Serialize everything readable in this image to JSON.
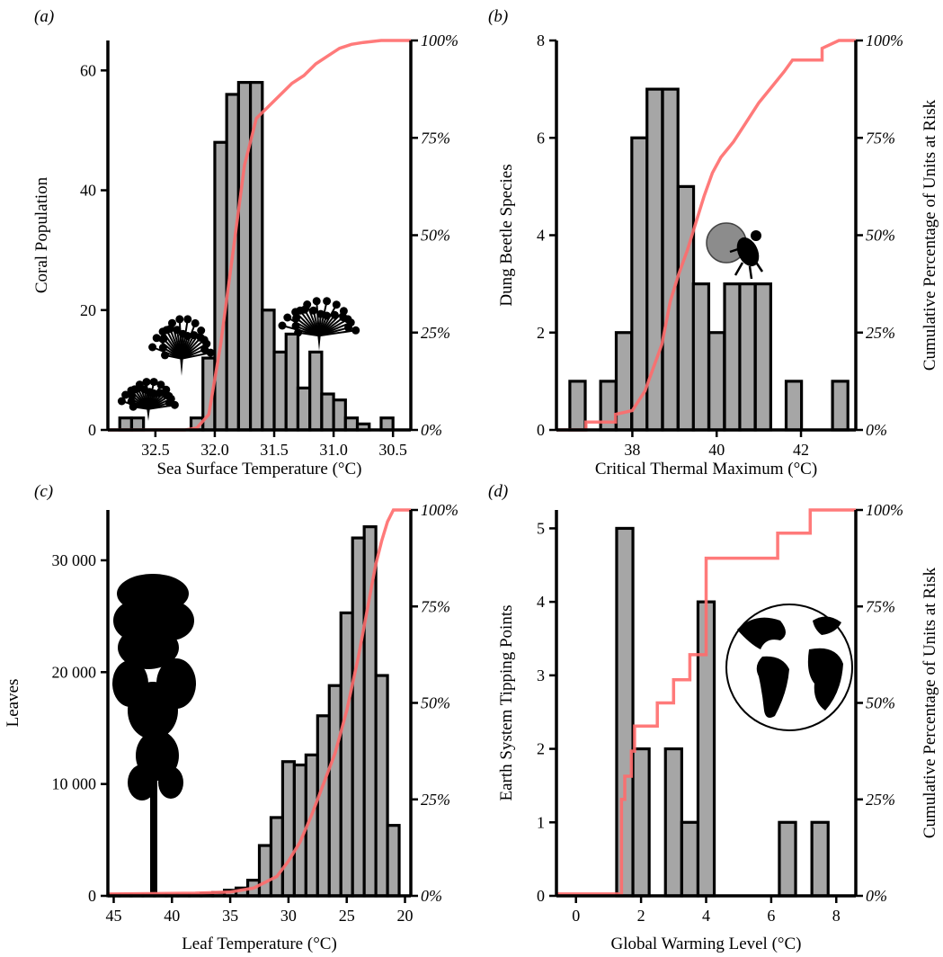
{
  "chart_data": [
    {
      "type": "bar",
      "panel_label": "(a)",
      "xlabel": "Sea Surface Temperature (°C)",
      "ylabel": "Coral Population",
      "y2label": "",
      "x_reversed": true,
      "xlim": [
        32.9,
        30.35
      ],
      "ylim": [
        0,
        65
      ],
      "x_ticks": [
        32.5,
        32.0,
        31.5,
        31.0,
        30.5
      ],
      "x_tick_labels": [
        "32.5",
        "32.0",
        "31.5",
        "31.0",
        "30.5"
      ],
      "y_ticks": [
        0,
        20,
        40,
        60
      ],
      "y_tick_labels": [
        "0",
        "20",
        "40",
        "60"
      ],
      "y2_tick_labels": [
        "0%",
        "25%",
        "50%",
        "75%",
        "100%"
      ],
      "bin_width": 0.1,
      "bins": [
        {
          "x": 32.75,
          "value": 2
        },
        {
          "x": 32.65,
          "value": 2
        },
        {
          "x": 32.15,
          "value": 2
        },
        {
          "x": 32.05,
          "value": 12
        },
        {
          "x": 31.95,
          "value": 48
        },
        {
          "x": 31.85,
          "value": 56
        },
        {
          "x": 31.75,
          "value": 58
        },
        {
          "x": 31.65,
          "value": 58
        },
        {
          "x": 31.55,
          "value": 20
        },
        {
          "x": 31.45,
          "value": 13
        },
        {
          "x": 31.35,
          "value": 16
        },
        {
          "x": 31.25,
          "value": 7
        },
        {
          "x": 31.15,
          "value": 13
        },
        {
          "x": 31.05,
          "value": 6
        },
        {
          "x": 30.95,
          "value": 5
        },
        {
          "x": 30.85,
          "value": 2
        },
        {
          "x": 30.75,
          "value": 1
        },
        {
          "x": 30.55,
          "value": 2
        }
      ],
      "cdf": [
        [
          32.9,
          0
        ],
        [
          32.25,
          0
        ],
        [
          32.15,
          0.5
        ],
        [
          32.05,
          4
        ],
        [
          31.95,
          22
        ],
        [
          31.85,
          45
        ],
        [
          31.75,
          68
        ],
        [
          31.65,
          80
        ],
        [
          31.55,
          83
        ],
        [
          31.45,
          86
        ],
        [
          31.35,
          89
        ],
        [
          31.25,
          91
        ],
        [
          31.15,
          94
        ],
        [
          31.05,
          96
        ],
        [
          30.95,
          98
        ],
        [
          30.85,
          99
        ],
        [
          30.75,
          99.5
        ],
        [
          30.6,
          100
        ],
        [
          30.35,
          100
        ]
      ],
      "silhouette": "coral-icon"
    },
    {
      "type": "bar",
      "panel_label": "(b)",
      "xlabel": "Critical Thermal Maximum (°C)",
      "ylabel": "Dung Beetle Species",
      "y2label": "Cumulative Percentage of Units at Risk",
      "x_reversed": false,
      "xlim": [
        36.2,
        43.3
      ],
      "ylim": [
        0,
        8
      ],
      "x_ticks": [
        38,
        40,
        42
      ],
      "x_tick_labels": [
        "38",
        "40",
        "42"
      ],
      "y_ticks": [
        0,
        2,
        4,
        6,
        8
      ],
      "y_tick_labels": [
        "0",
        "2",
        "4",
        "6",
        "8"
      ],
      "y2_tick_labels": [
        "0%",
        "25%",
        "50%",
        "75%",
        "100%"
      ],
      "bin_width": 0.365,
      "bins": [
        {
          "x": 36.7,
          "value": 1
        },
        {
          "x": 37.43,
          "value": 1
        },
        {
          "x": 37.8,
          "value": 2
        },
        {
          "x": 38.17,
          "value": 6
        },
        {
          "x": 38.53,
          "value": 7
        },
        {
          "x": 38.9,
          "value": 7
        },
        {
          "x": 39.27,
          "value": 5
        },
        {
          "x": 39.63,
          "value": 3
        },
        {
          "x": 40.0,
          "value": 2
        },
        {
          "x": 40.37,
          "value": 3
        },
        {
          "x": 40.73,
          "value": 3
        },
        {
          "x": 41.1,
          "value": 3
        },
        {
          "x": 41.83,
          "value": 1
        },
        {
          "x": 42.93,
          "value": 1
        }
      ],
      "cdf": [
        [
          36.2,
          0
        ],
        [
          36.9,
          0
        ],
        [
          36.9,
          2
        ],
        [
          37.6,
          2
        ],
        [
          37.6,
          4
        ],
        [
          38.0,
          5
        ],
        [
          38.3,
          10
        ],
        [
          38.7,
          22
        ],
        [
          38.9,
          33
        ],
        [
          39.1,
          40
        ],
        [
          39.3,
          46
        ],
        [
          39.5,
          53
        ],
        [
          39.7,
          60
        ],
        [
          39.9,
          66
        ],
        [
          40.1,
          70
        ],
        [
          40.4,
          74
        ],
        [
          40.7,
          79
        ],
        [
          41.0,
          84
        ],
        [
          41.3,
          88
        ],
        [
          41.6,
          92
        ],
        [
          41.8,
          95
        ],
        [
          42.5,
          95
        ],
        [
          42.5,
          98
        ],
        [
          42.9,
          100
        ],
        [
          43.3,
          100
        ]
      ],
      "silhouette": "dung-beetle-icon"
    },
    {
      "type": "bar",
      "panel_label": "(c)",
      "xlabel": "Leaf Temperature (°C)",
      "ylabel": "Leaves",
      "y2label": "",
      "x_reversed": true,
      "xlim": [
        45.5,
        19.5
      ],
      "ylim": [
        0,
        34500
      ],
      "x_ticks": [
        45,
        40,
        35,
        30,
        25,
        20
      ],
      "x_tick_labels": [
        "45",
        "40",
        "35",
        "30",
        "25",
        "20"
      ],
      "y_ticks": [
        0,
        10000,
        20000,
        30000
      ],
      "y_tick_labels": [
        "0",
        "10 000",
        "20 000",
        "30 000"
      ],
      "y2_tick_labels": [
        "0%",
        "25%",
        "50%",
        "75%",
        "100%"
      ],
      "bin_width": 1,
      "bins": [
        {
          "x": 45,
          "value": 100
        },
        {
          "x": 44,
          "value": 100
        },
        {
          "x": 43,
          "value": 100
        },
        {
          "x": 42,
          "value": 100
        },
        {
          "x": 41,
          "value": 100
        },
        {
          "x": 40,
          "value": 100
        },
        {
          "x": 39,
          "value": 100
        },
        {
          "x": 38,
          "value": 100
        },
        {
          "x": 37,
          "value": 200
        },
        {
          "x": 36,
          "value": 300
        },
        {
          "x": 35,
          "value": 500
        },
        {
          "x": 34,
          "value": 700
        },
        {
          "x": 33,
          "value": 1400
        },
        {
          "x": 32,
          "value": 4500
        },
        {
          "x": 31,
          "value": 7000
        },
        {
          "x": 30,
          "value": 12000
        },
        {
          "x": 29,
          "value": 11700
        },
        {
          "x": 28,
          "value": 12600
        },
        {
          "x": 27,
          "value": 16100
        },
        {
          "x": 26,
          "value": 18800
        },
        {
          "x": 25,
          "value": 25300
        },
        {
          "x": 24,
          "value": 32000
        },
        {
          "x": 23,
          "value": 33000
        },
        {
          "x": 22,
          "value": 19700
        },
        {
          "x": 21,
          "value": 6300
        }
      ],
      "cdf": [
        [
          45.5,
          0.5
        ],
        [
          38,
          0.7
        ],
        [
          35,
          1
        ],
        [
          33,
          2
        ],
        [
          31,
          5
        ],
        [
          30,
          9
        ],
        [
          29,
          14
        ],
        [
          28,
          21
        ],
        [
          27,
          29
        ],
        [
          26,
          37
        ],
        [
          25,
          48
        ],
        [
          24.5,
          55
        ],
        [
          24,
          62
        ],
        [
          23.5,
          70
        ],
        [
          23,
          78
        ],
        [
          22.5,
          86
        ],
        [
          22,
          92
        ],
        [
          21.5,
          97
        ],
        [
          21,
          100
        ],
        [
          19.5,
          100
        ]
      ],
      "silhouette": "tree-icon"
    },
    {
      "type": "bar",
      "panel_label": "(d)",
      "xlabel": "Global Warming Level (°C)",
      "ylabel": "Earth System Tipping Points",
      "y2label": "Cumulative Percentage of Units at Risk",
      "x_reversed": false,
      "xlim": [
        -0.6,
        8.6
      ],
      "ylim": [
        0,
        5.25
      ],
      "x_ticks": [
        0,
        2,
        4,
        6,
        8
      ],
      "x_tick_labels": [
        "0",
        "2",
        "4",
        "6",
        "8"
      ],
      "y_ticks": [
        0,
        1,
        2,
        3,
        4,
        5
      ],
      "y_tick_labels": [
        "0",
        "1",
        "2",
        "3",
        "4",
        "5"
      ],
      "y2_tick_labels": [
        "0%",
        "25%",
        "50%",
        "75%",
        "100%"
      ],
      "bin_width": 0.5,
      "bins": [
        {
          "x": 1.5,
          "value": 5
        },
        {
          "x": 2.0,
          "value": 2
        },
        {
          "x": 3.0,
          "value": 2
        },
        {
          "x": 3.5,
          "value": 1
        },
        {
          "x": 4.0,
          "value": 4
        },
        {
          "x": 6.5,
          "value": 1
        },
        {
          "x": 7.5,
          "value": 1
        }
      ],
      "cdf": [
        [
          -0.6,
          0.5
        ],
        [
          1.4,
          0.5
        ],
        [
          1.4,
          25
        ],
        [
          1.5,
          25
        ],
        [
          1.5,
          31
        ],
        [
          1.7,
          31
        ],
        [
          1.7,
          37.5
        ],
        [
          1.8,
          37.5
        ],
        [
          1.8,
          44
        ],
        [
          2.5,
          44
        ],
        [
          2.5,
          50
        ],
        [
          3.0,
          50
        ],
        [
          3.0,
          56
        ],
        [
          3.5,
          56
        ],
        [
          3.5,
          62.5
        ],
        [
          4.0,
          62.5
        ],
        [
          4.0,
          87.5
        ],
        [
          6.2,
          87.5
        ],
        [
          6.2,
          94
        ],
        [
          7.2,
          94
        ],
        [
          7.2,
          100
        ],
        [
          8.6,
          100
        ]
      ],
      "silhouette": "earth-globe-icon"
    }
  ]
}
